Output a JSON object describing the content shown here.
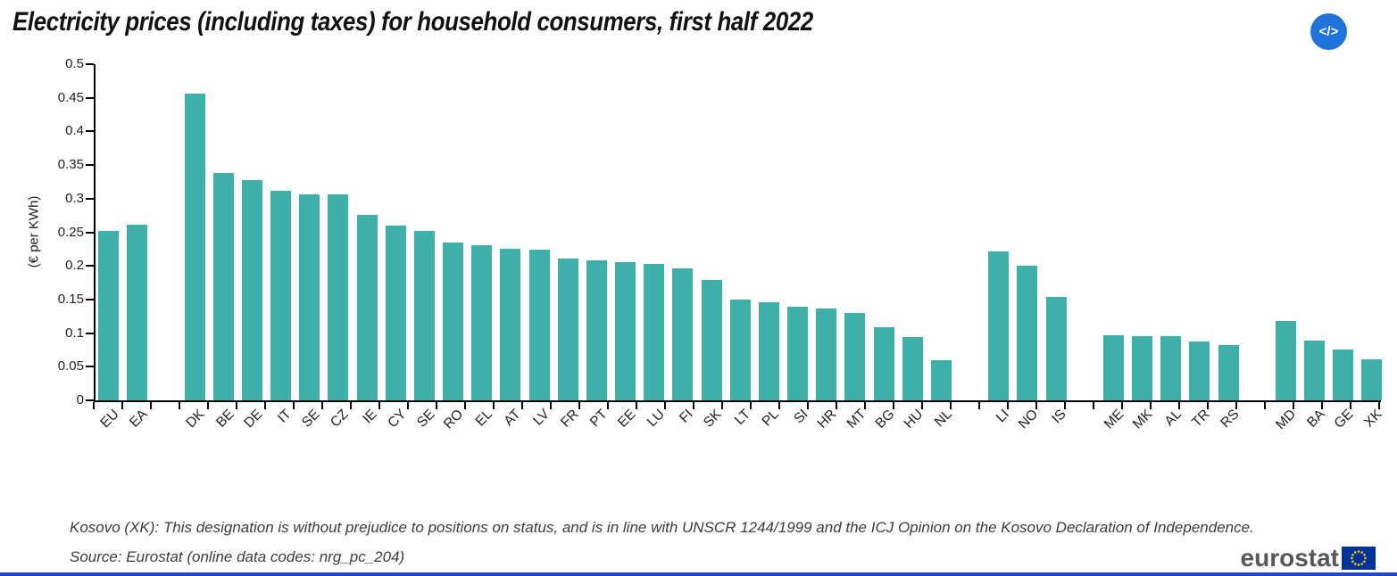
{
  "title": "Electricity prices (including taxes) for household consumers, first half 2022",
  "embed_button": {
    "icon": "code-embed-icon",
    "label": "</>"
  },
  "chart_data": {
    "type": "bar",
    "title": "Electricity prices (including taxes) for household consumers, first half 2022",
    "xlabel": "",
    "ylabel": "(€ per KWh)",
    "ylim": [
      0,
      0.5
    ],
    "ytick_step": 0.05,
    "yticks": [
      "0",
      "0.05",
      "0.1",
      "0.15",
      "0.2",
      "0.25",
      "0.3",
      "0.35",
      "0.4",
      "0.45",
      "0.5"
    ],
    "grid": false,
    "legend": false,
    "bar_color": "#3fb0a9",
    "groups": [
      {
        "name": "aggregates",
        "bars": [
          {
            "label": "EU",
            "value": 0.2525
          },
          {
            "label": "EA",
            "value": 0.2618
          }
        ]
      },
      {
        "name": "eu-members",
        "bars": [
          {
            "label": "DK",
            "value": 0.4559
          },
          {
            "label": "BE",
            "value": 0.3377
          },
          {
            "label": "DE",
            "value": 0.3279
          },
          {
            "label": "IT",
            "value": 0.3115
          },
          {
            "label": "SE",
            "value": 0.3068
          },
          {
            "label": "CZ",
            "value": 0.3061
          },
          {
            "label": "IE",
            "value": 0.276
          },
          {
            "label": "CY",
            "value": 0.2606
          },
          {
            "label": "SE",
            "value": 0.2525
          },
          {
            "label": "RO",
            "value": 0.2351
          },
          {
            "label": "EL",
            "value": 0.2305
          },
          {
            "label": "AT",
            "value": 0.2255
          },
          {
            "label": "LV",
            "value": 0.2243
          },
          {
            "label": "FR",
            "value": 0.2105
          },
          {
            "label": "PT",
            "value": 0.2077
          },
          {
            "label": "EE",
            "value": 0.2059
          },
          {
            "label": "LU",
            "value": 0.2031
          },
          {
            "label": "FI",
            "value": 0.1957
          },
          {
            "label": "SK",
            "value": 0.1795
          },
          {
            "label": "LT",
            "value": 0.1496
          },
          {
            "label": "PL",
            "value": 0.1459
          },
          {
            "label": "SI",
            "value": 0.1388
          },
          {
            "label": "HR",
            "value": 0.1366
          },
          {
            "label": "MT",
            "value": 0.1298
          },
          {
            "label": "BG",
            "value": 0.1091
          },
          {
            "label": "HU",
            "value": 0.0948
          },
          {
            "label": "NL",
            "value": 0.0595
          }
        ]
      },
      {
        "name": "efta",
        "bars": [
          {
            "label": "LI",
            "value": 0.2212
          },
          {
            "label": "NO",
            "value": 0.2006
          },
          {
            "label": "IS",
            "value": 0.1537
          }
        ]
      },
      {
        "name": "candidates",
        "bars": [
          {
            "label": "ME",
            "value": 0.0963
          },
          {
            "label": "MK",
            "value": 0.0957
          },
          {
            "label": "AL",
            "value": 0.0955
          },
          {
            "label": "TR",
            "value": 0.0869
          },
          {
            "label": "RS",
            "value": 0.0818
          }
        ]
      },
      {
        "name": "others",
        "bars": [
          {
            "label": "MD",
            "value": 0.1174
          },
          {
            "label": "BA",
            "value": 0.0892
          },
          {
            "label": "GE",
            "value": 0.075
          },
          {
            "label": "XK",
            "value": 0.0614
          }
        ]
      }
    ]
  },
  "footnote": "Kosovo (XK): This designation is without prejudice to positions on status, and is in line with UNSCR 1244/1999 and the ICJ Opinion on the Kosovo Declaration of Independence.",
  "source": "Source: Eurostat (online data codes: nrg_pc_204)",
  "logo": {
    "text": "eurostat",
    "flag_icon": "eu-flag-icon"
  },
  "colors": {
    "bar": "#3fb0a9",
    "embed_button": "#2173dc",
    "flag_blue": "#003399",
    "star_yellow": "#ffcc00",
    "bottom_strip": "#2148c8",
    "axis": "#000000"
  }
}
